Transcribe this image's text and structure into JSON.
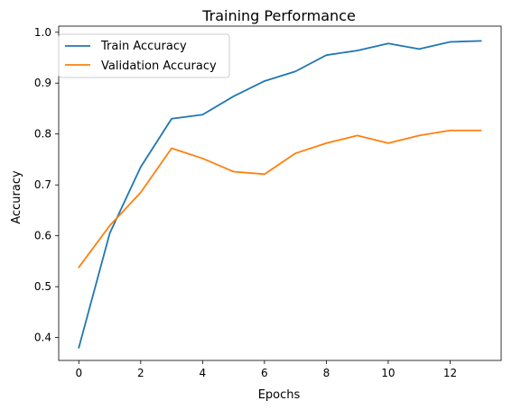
{
  "chart_data": {
    "type": "line",
    "title": "Training Performance",
    "xlabel": "Epochs",
    "ylabel": "Accuracy",
    "x": [
      0,
      1,
      2,
      3,
      4,
      5,
      6,
      7,
      8,
      9,
      10,
      11,
      12,
      13
    ],
    "xlim": [
      -0.65,
      13.65
    ],
    "ylim": [
      0.355,
      1.012
    ],
    "xticks": [
      0,
      2,
      4,
      6,
      8,
      10,
      12
    ],
    "yticks": [
      0.4,
      0.5,
      0.6,
      0.7,
      0.8,
      0.9,
      1.0
    ],
    "xtick_labels": [
      "0",
      "2",
      "4",
      "6",
      "8",
      "10",
      "12"
    ],
    "ytick_labels": [
      "0.4",
      "0.5",
      "0.6",
      "0.7",
      "0.8",
      "0.9",
      "1.0"
    ],
    "grid": false,
    "legend_position": "top-left",
    "series": [
      {
        "name": "Train Accuracy",
        "color": "#1f77b4",
        "values": [
          0.38,
          0.605,
          0.735,
          0.83,
          0.838,
          0.874,
          0.904,
          0.923,
          0.955,
          0.964,
          0.978,
          0.967,
          0.981,
          0.983
        ]
      },
      {
        "name": "Validation Accuracy",
        "color": "#ff7f0e",
        "values": [
          0.538,
          0.62,
          0.685,
          0.772,
          0.752,
          0.726,
          0.721,
          0.762,
          0.782,
          0.797,
          0.782,
          0.797,
          0.807,
          0.807
        ]
      }
    ]
  }
}
